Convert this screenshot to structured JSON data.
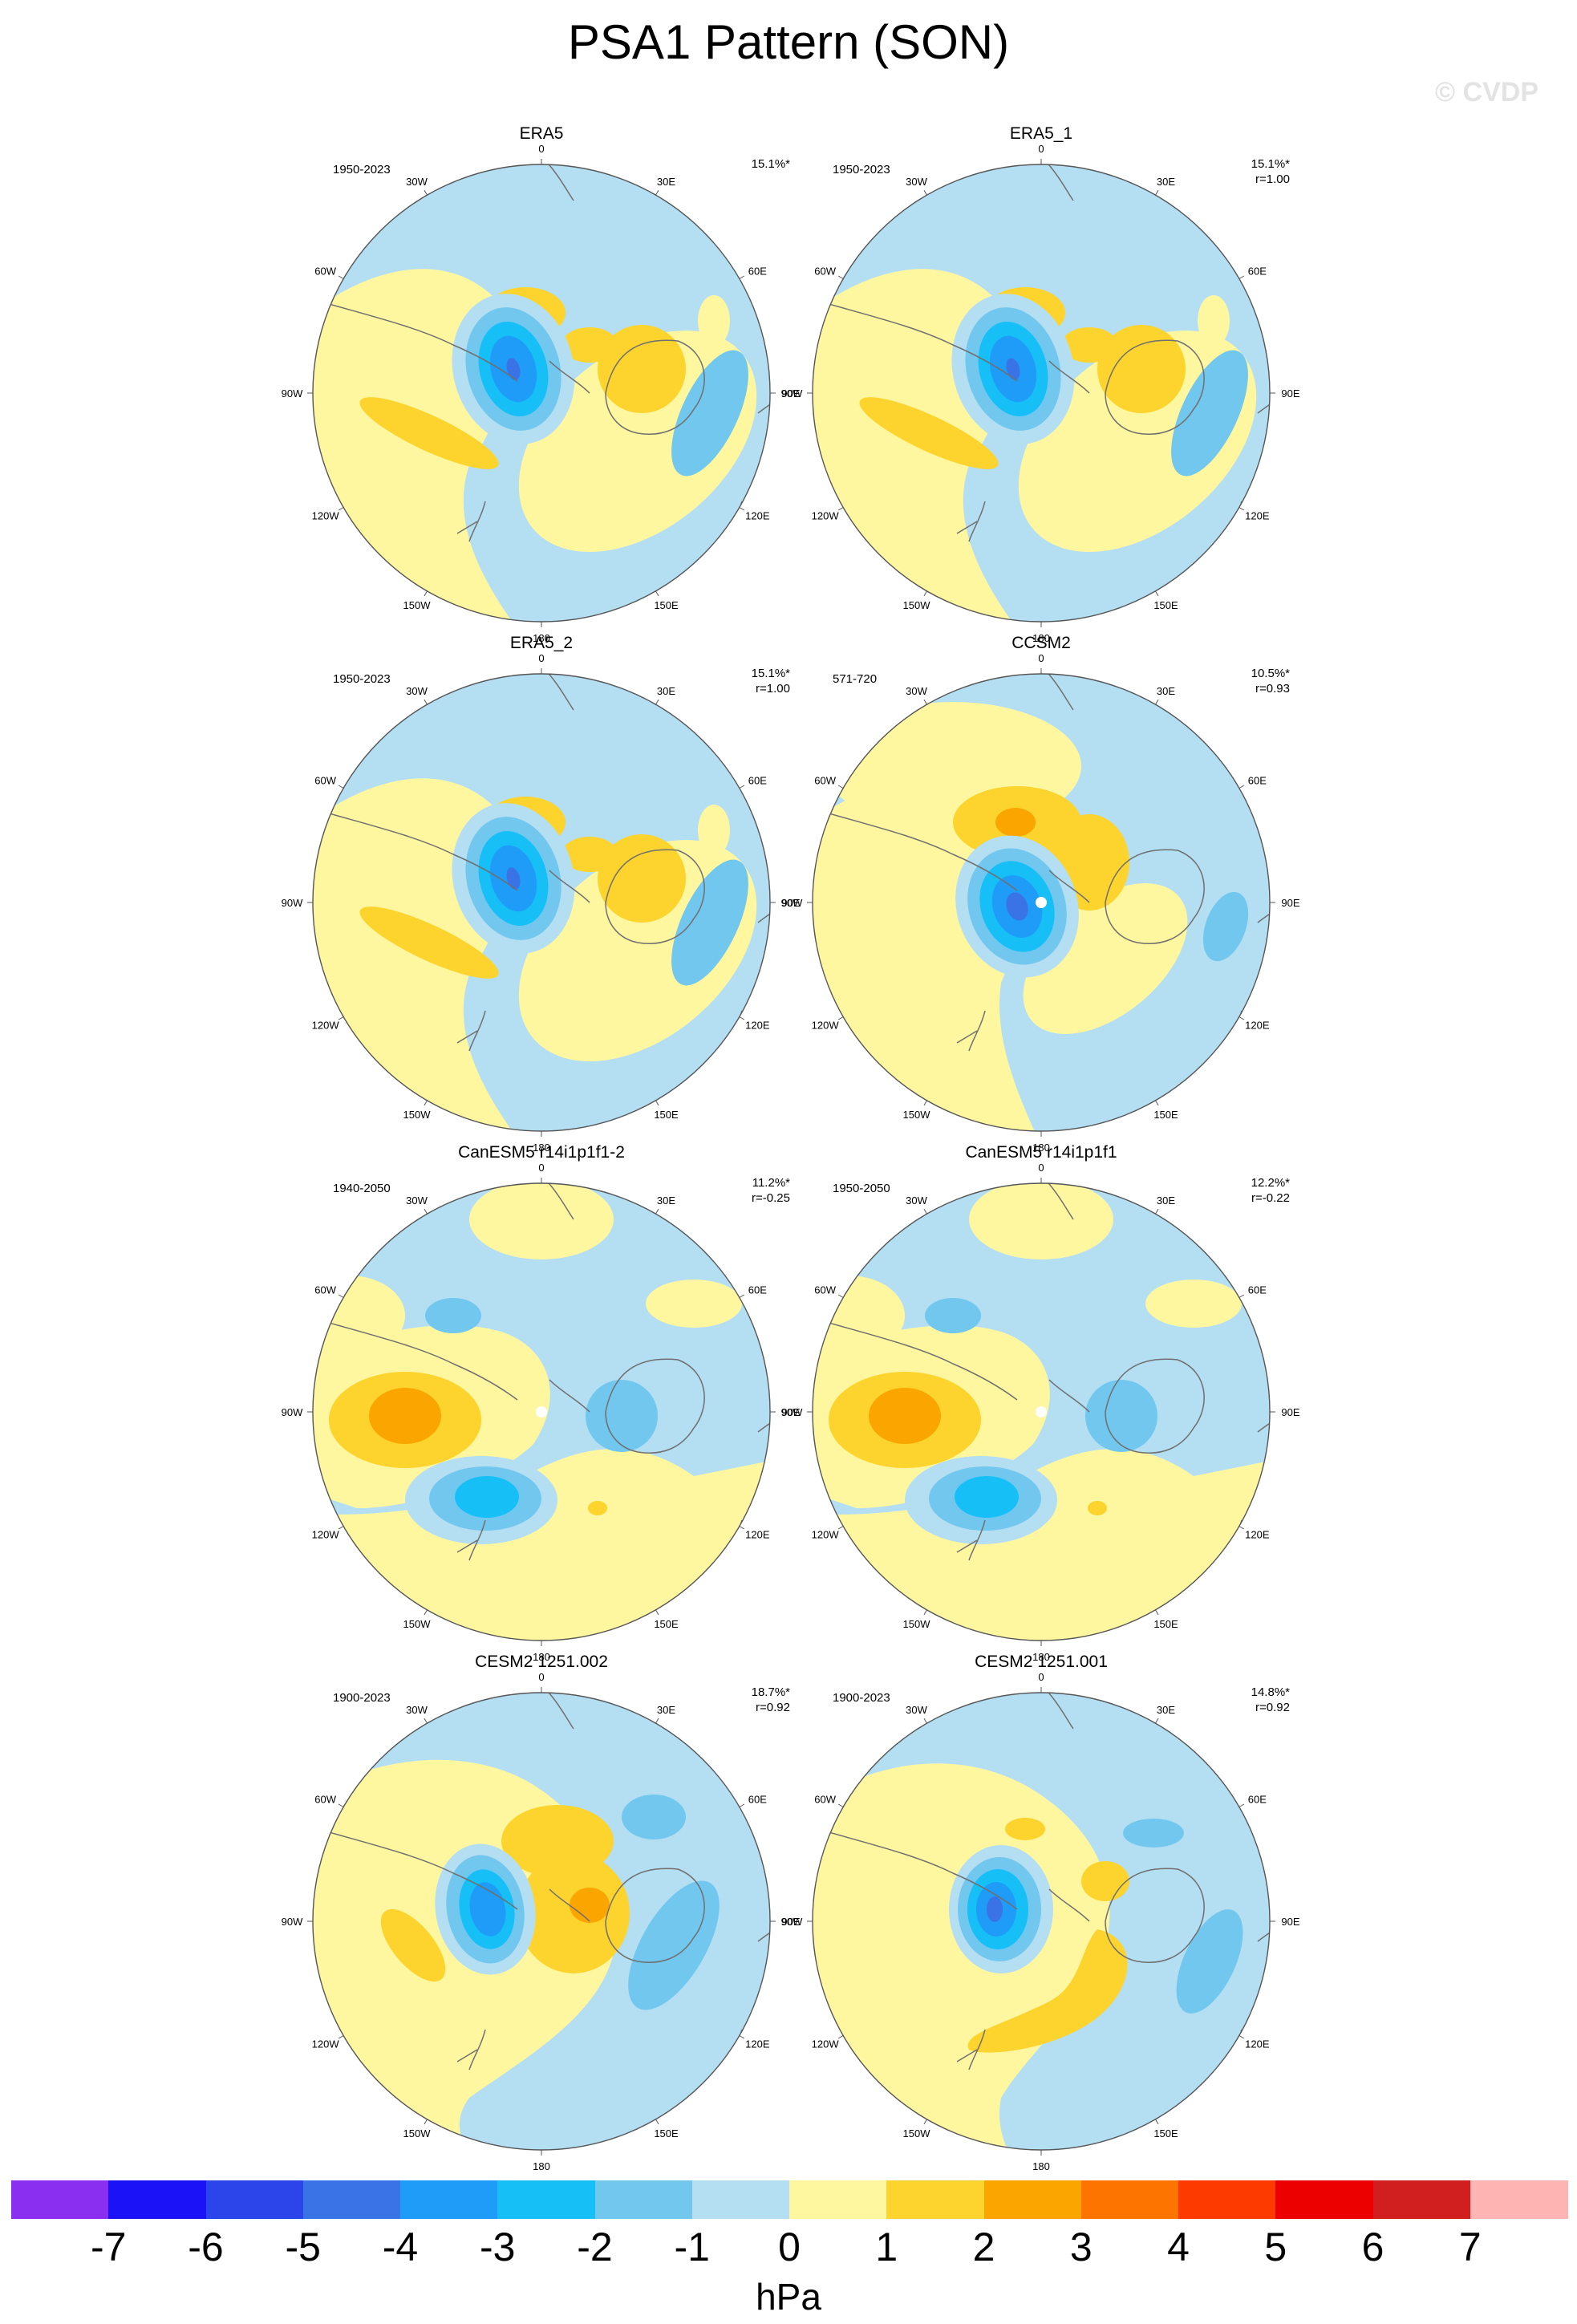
{
  "title": "PSA1 Pattern (SON)",
  "watermark": "© CVDP",
  "colors": {
    "pos1": "#fff7a0",
    "pos2": "#fdd42e",
    "pos3": "#fba500",
    "neg1": "#b4def2",
    "neg2": "#72c7ef",
    "neg3": "#16c0f7",
    "neg4": "#1f9cf7",
    "neg5": "#3a73e6",
    "coast": "#6f6f6f",
    "rim": "#555555"
  },
  "map_labels": {
    "n": "0",
    "e30": "30E",
    "e60": "60E",
    "e90": "90E",
    "e120": "120E",
    "e150": "150E",
    "s": "180",
    "w150": "150W",
    "w120": "120W",
    "w90": "90W",
    "w60": "60W",
    "w30": "30W"
  },
  "panels": [
    {
      "title": "ERA5",
      "period": "1950-2023",
      "pct": "15.1%*",
      "r": "",
      "pattern": "obs",
      "mark": false
    },
    {
      "title": "ERA5_1",
      "period": "1950-2023",
      "pct": "15.1%*",
      "r": "r=1.00",
      "pattern": "obs",
      "mark": false
    },
    {
      "title": "ERA5_2",
      "period": "1950-2023",
      "pct": "15.1%*",
      "r": "r=1.00",
      "pattern": "obs",
      "mark": false
    },
    {
      "title": "CCSM2",
      "period": "571-720",
      "pct": "10.5%*",
      "r": "r=0.93",
      "pattern": "ccsm",
      "mark": true
    },
    {
      "title": "CanESM5 r14i1p1f1-2",
      "period": "1940-2050",
      "pct": "11.2%*",
      "r": "r=-0.25",
      "pattern": "can",
      "mark": true
    },
    {
      "title": "CanESM5 r14i1p1f1",
      "period": "1950-2050",
      "pct": "12.2%*",
      "r": "r=-0.22",
      "pattern": "can",
      "mark": true
    },
    {
      "title": "CESM2 1251.002",
      "period": "1900-2023",
      "pct": "18.7%*",
      "r": "r=0.92",
      "pattern": "cesm_a",
      "mark": false
    },
    {
      "title": "CESM2 1251.001",
      "period": "1900-2023",
      "pct": "14.8%*",
      "r": "r=0.92",
      "pattern": "cesm_b",
      "mark": false
    }
  ],
  "colorbar": {
    "colors": [
      "#8a2ff0",
      "#1b12f7",
      "#2b45ea",
      "#3a73e6",
      "#1f9cf7",
      "#16c0f7",
      "#72c7ef",
      "#b4def2",
      "#fff7a0",
      "#fdd42e",
      "#fba500",
      "#fd7400",
      "#fd3a00",
      "#ec0000",
      "#d11f1f",
      "#ffb4b4"
    ],
    "ticks": [
      "-7",
      "-6",
      "-5",
      "-4",
      "-3",
      "-2",
      "-1",
      "0",
      "1",
      "2",
      "3",
      "4",
      "5",
      "6",
      "7"
    ],
    "units": "hPa"
  }
}
